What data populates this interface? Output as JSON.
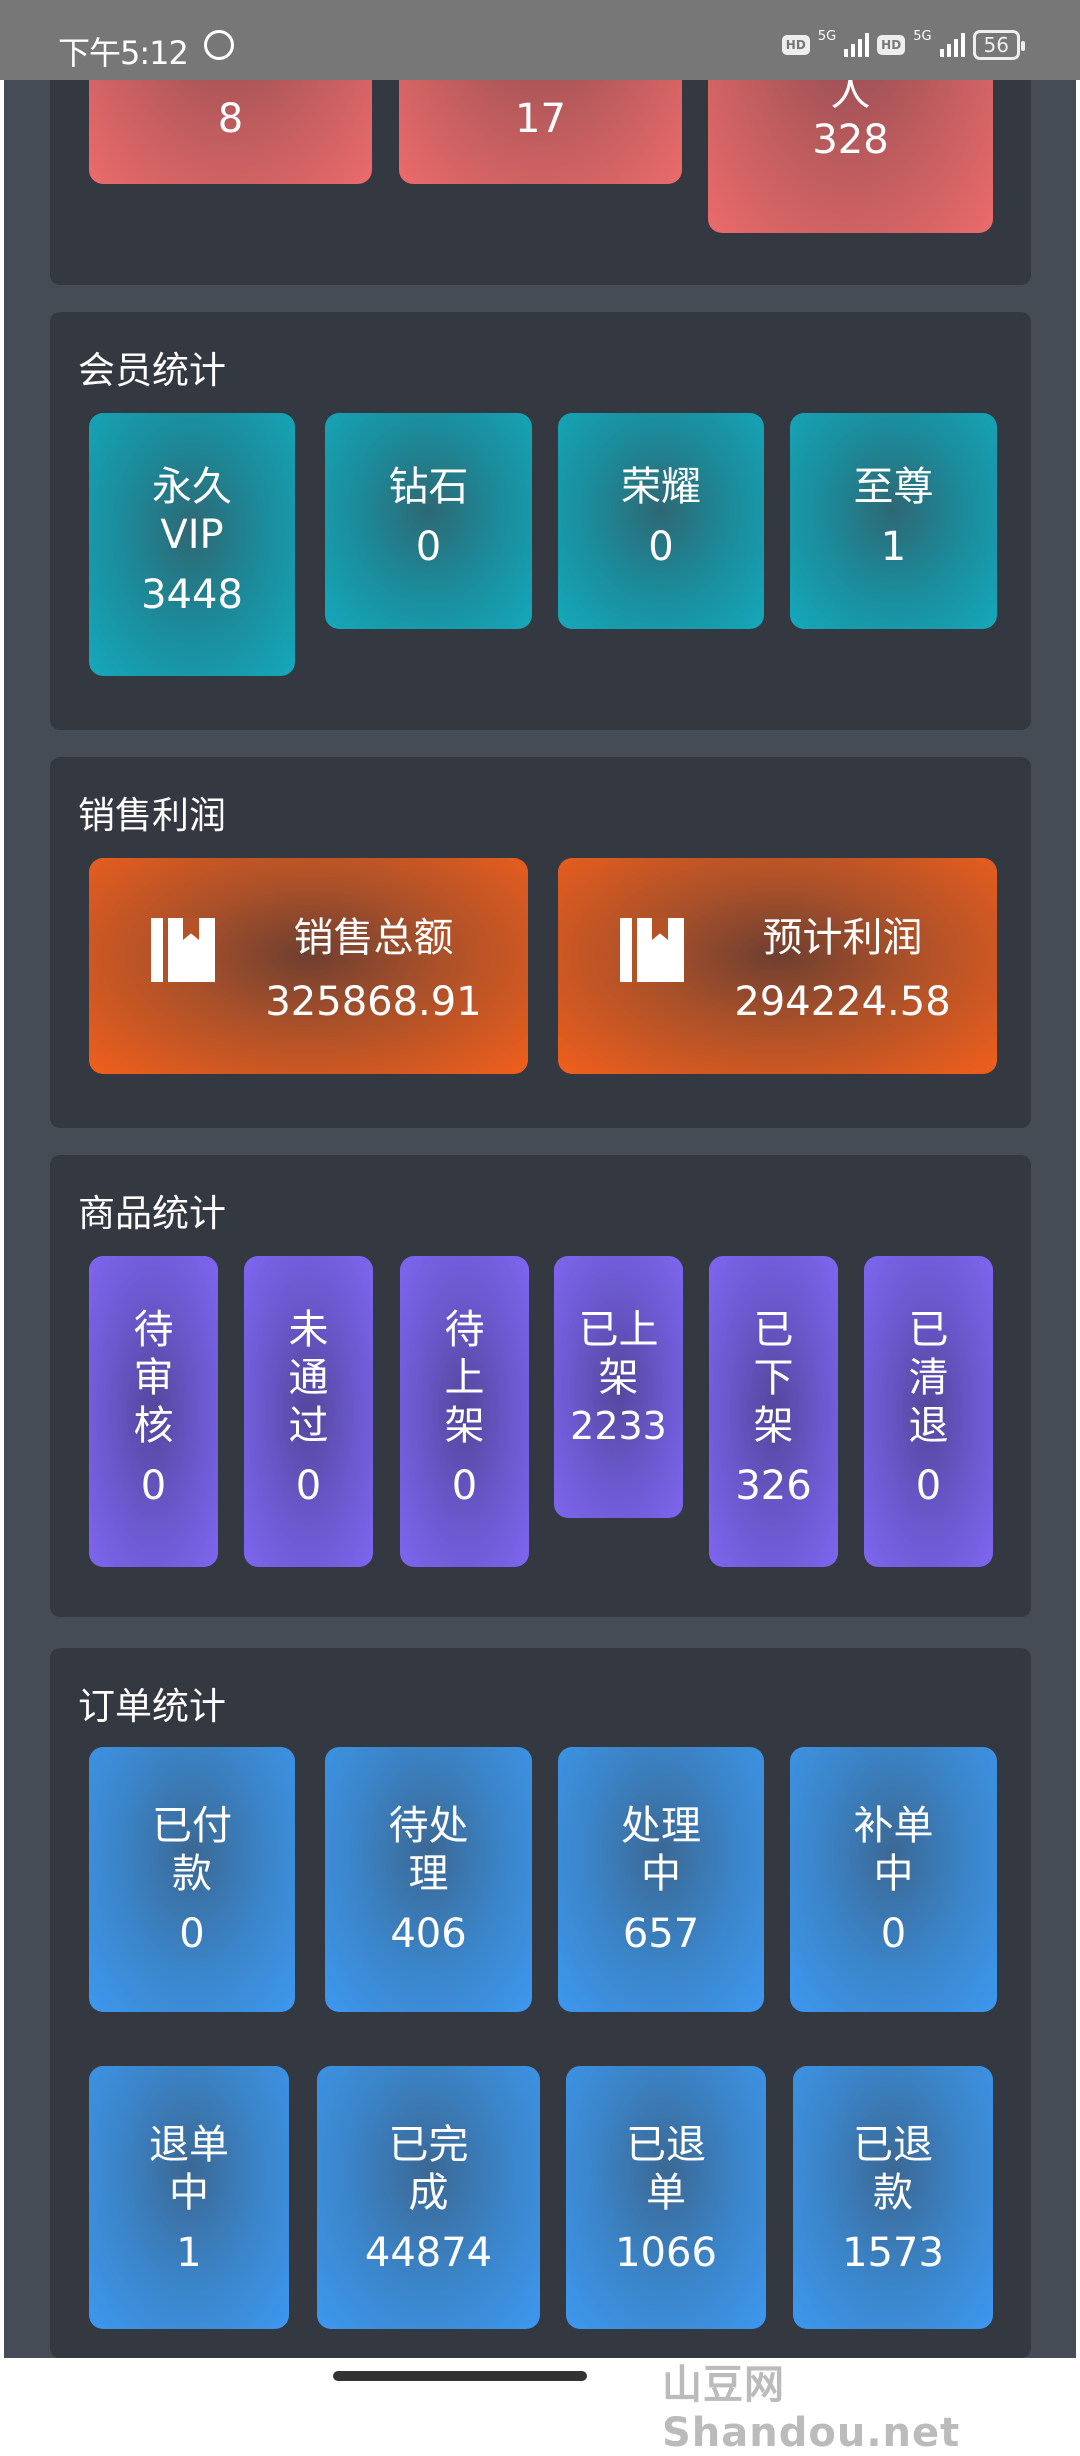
{
  "status_bar": {
    "time": "下午5:12",
    "network1": "5G",
    "network2": "5G",
    "hd": "HD",
    "battery": "56"
  },
  "top_panel": {
    "cards": [
      {
        "value": "8"
      },
      {
        "value": "17"
      },
      {
        "label": "人",
        "value": "328"
      }
    ]
  },
  "member_stats": {
    "title": "会员统计",
    "cards": [
      {
        "label": "永久VIP",
        "value": "3448"
      },
      {
        "label": "钻石",
        "value": "0"
      },
      {
        "label": "荣耀",
        "value": "0"
      },
      {
        "label": "至尊",
        "value": "1"
      }
    ]
  },
  "sales_profit": {
    "title": "销售利润",
    "cards": [
      {
        "icon": "book-icon",
        "label": "销售总额",
        "value": "325868.91"
      },
      {
        "icon": "book-icon",
        "label": "预计利润",
        "value": "294224.58"
      }
    ]
  },
  "product_stats": {
    "title": "商品统计",
    "cards": [
      {
        "label": "待审核",
        "value": "0"
      },
      {
        "label": "未通过",
        "value": "0"
      },
      {
        "label": "待上架",
        "value": "0"
      },
      {
        "label": "已上架",
        "value": "2233"
      },
      {
        "label": "已下架",
        "value": "326"
      },
      {
        "label": "已清退",
        "value": "0"
      }
    ]
  },
  "order_stats": {
    "title": "订单统计",
    "cards": [
      {
        "label": "已付款",
        "value": "0"
      },
      {
        "label": "待处理",
        "value": "406"
      },
      {
        "label": "处理中",
        "value": "657"
      },
      {
        "label": "补单中",
        "value": "0"
      },
      {
        "label": "退单中",
        "value": "1"
      },
      {
        "label": "已完成",
        "value": "44874"
      },
      {
        "label": "已退单",
        "value": "1066"
      },
      {
        "label": "已退款",
        "value": "1573"
      }
    ]
  },
  "watermark": "山豆网 Shandou.net",
  "colors": {
    "red": "#ec6b6b",
    "teal": "#14a9bb",
    "orange": "#f15f1c",
    "purple": "#7e66f0",
    "blue": "#3d98f0",
    "panel": "#343840",
    "background": "#454c55"
  }
}
